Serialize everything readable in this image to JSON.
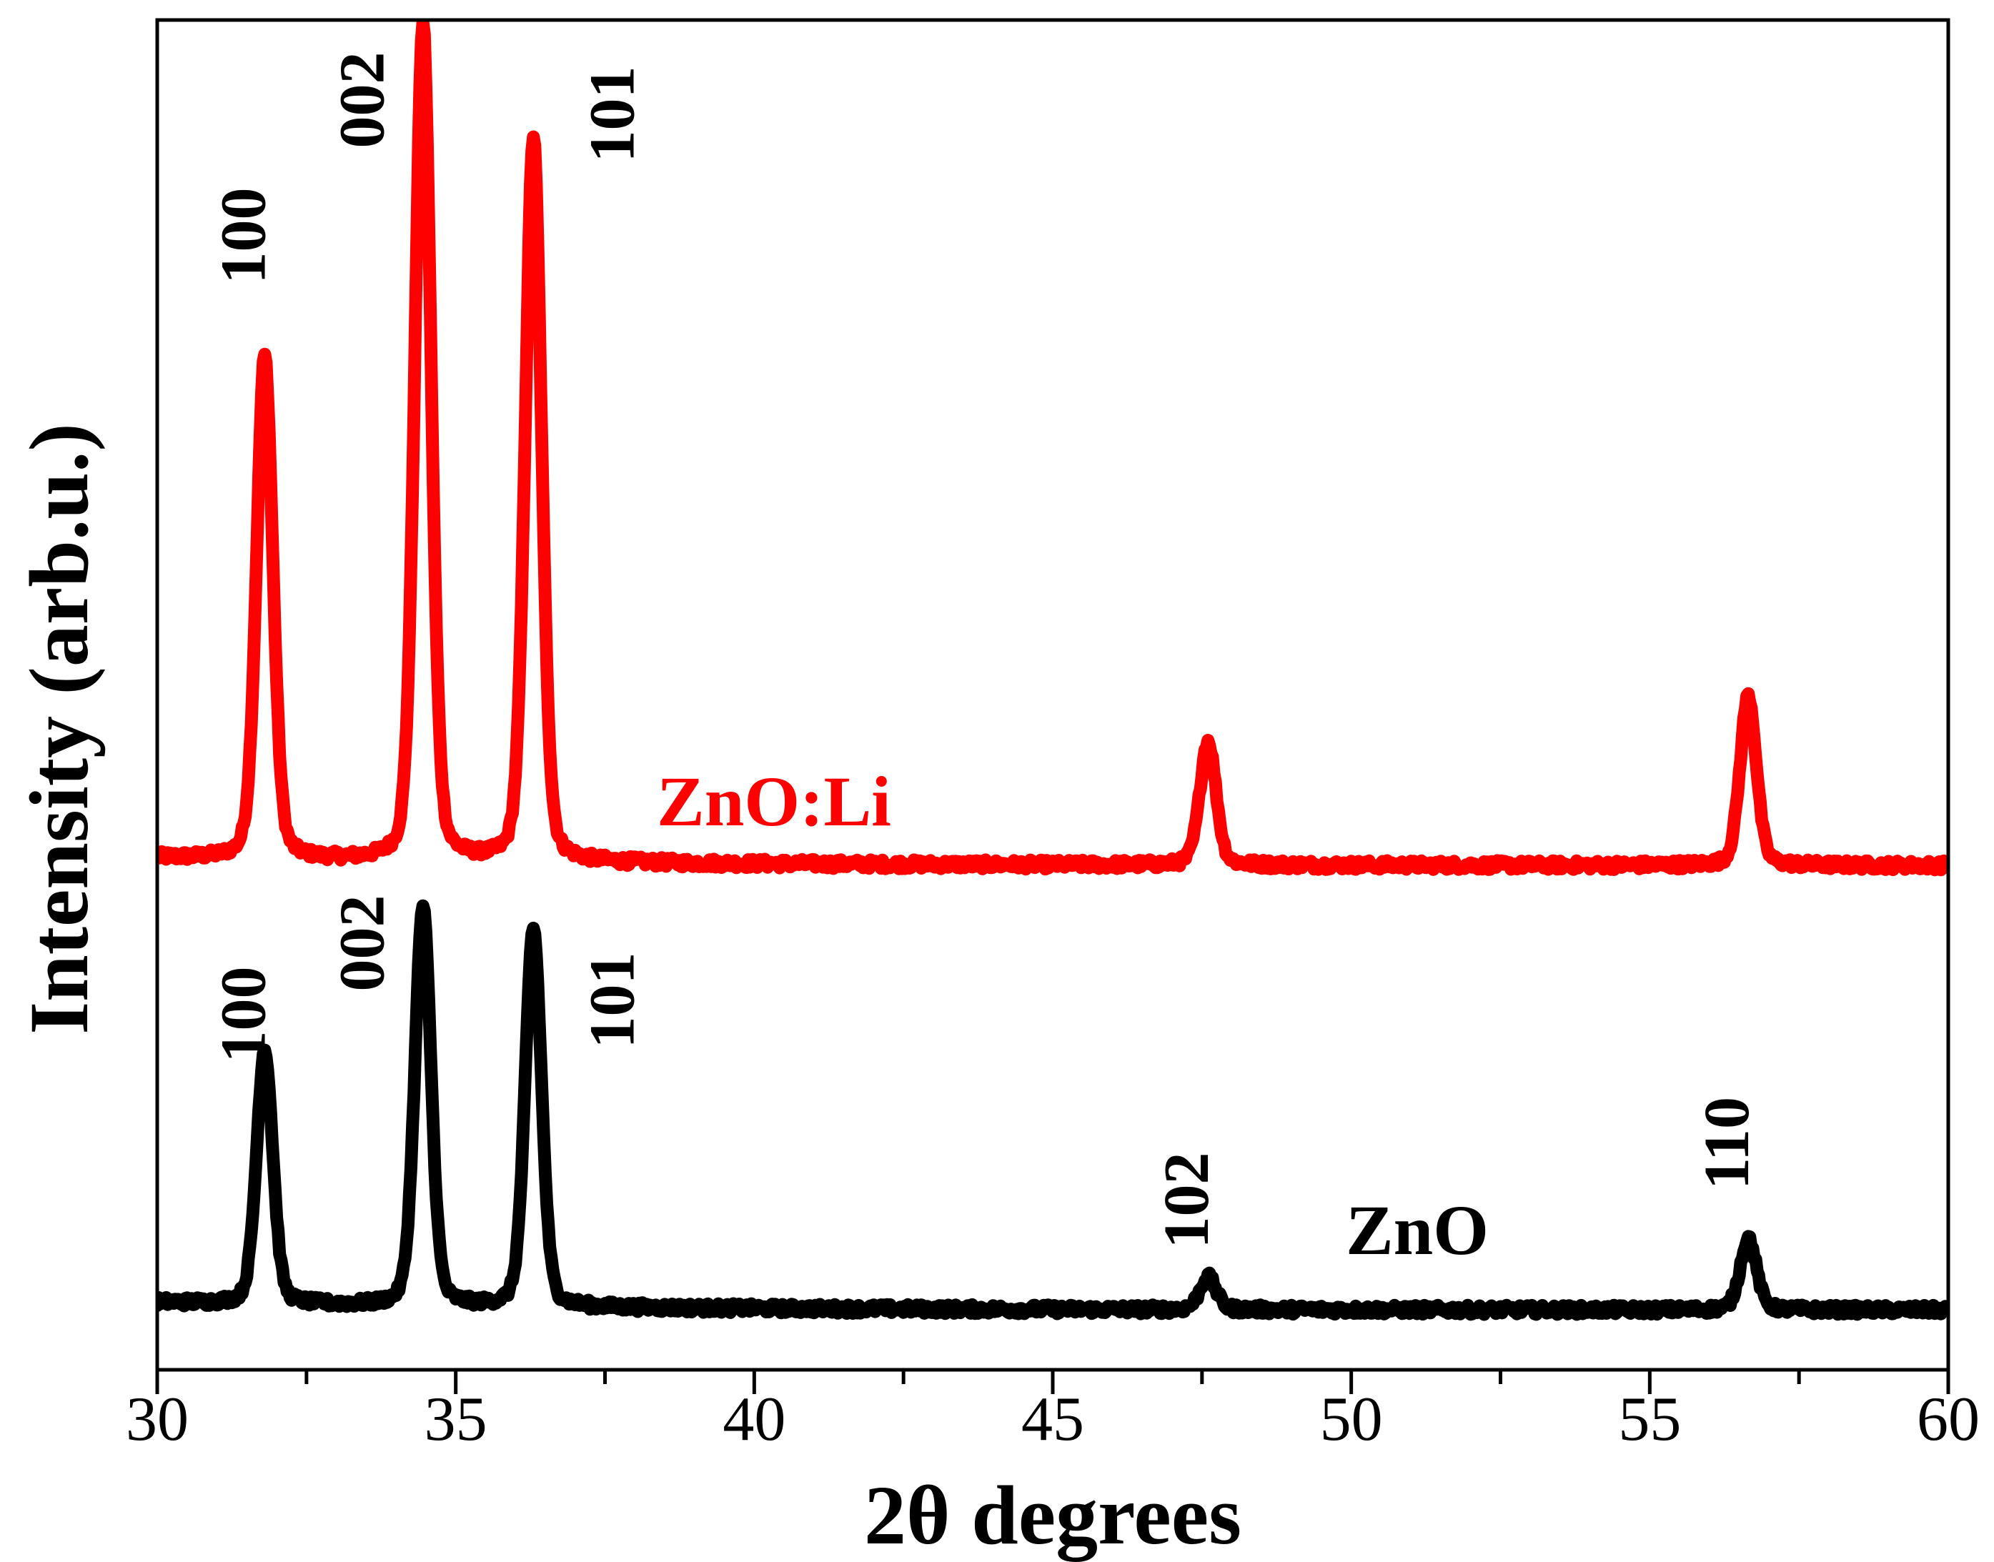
{
  "chart_data": {
    "type": "line",
    "title": "",
    "xlabel": "2θ degrees",
    "ylabel": "Intensity (arb.u.)",
    "xlim": [
      30,
      60
    ],
    "xticks": [
      "30",
      "35",
      "40",
      "45",
      "50",
      "55",
      "60"
    ],
    "y_ticks_shown": false,
    "grid": false,
    "series": [
      {
        "name": "ZnO:Li",
        "color": "#ff0000",
        "baseline": 0.36,
        "peaks": [
          {
            "x": 31.8,
            "y": 0.745,
            "label": "100"
          },
          {
            "x": 34.45,
            "y": 1.0,
            "label": "002"
          },
          {
            "x": 36.3,
            "y": 0.915,
            "label": "101"
          },
          {
            "x": 47.6,
            "y": 0.455,
            "label": ""
          },
          {
            "x": 56.65,
            "y": 0.49,
            "label": ""
          }
        ]
      },
      {
        "name": "ZnO",
        "color": "#000000",
        "baseline": 0.02,
        "peaks": [
          {
            "x": 31.8,
            "y": 0.215,
            "label": "100"
          },
          {
            "x": 34.45,
            "y": 0.325,
            "label": "002"
          },
          {
            "x": 36.3,
            "y": 0.31,
            "label": "101"
          },
          {
            "x": 47.6,
            "y": 0.045,
            "label": "102"
          },
          {
            "x": 56.65,
            "y": 0.075,
            "label": "110"
          }
        ]
      }
    ]
  }
}
